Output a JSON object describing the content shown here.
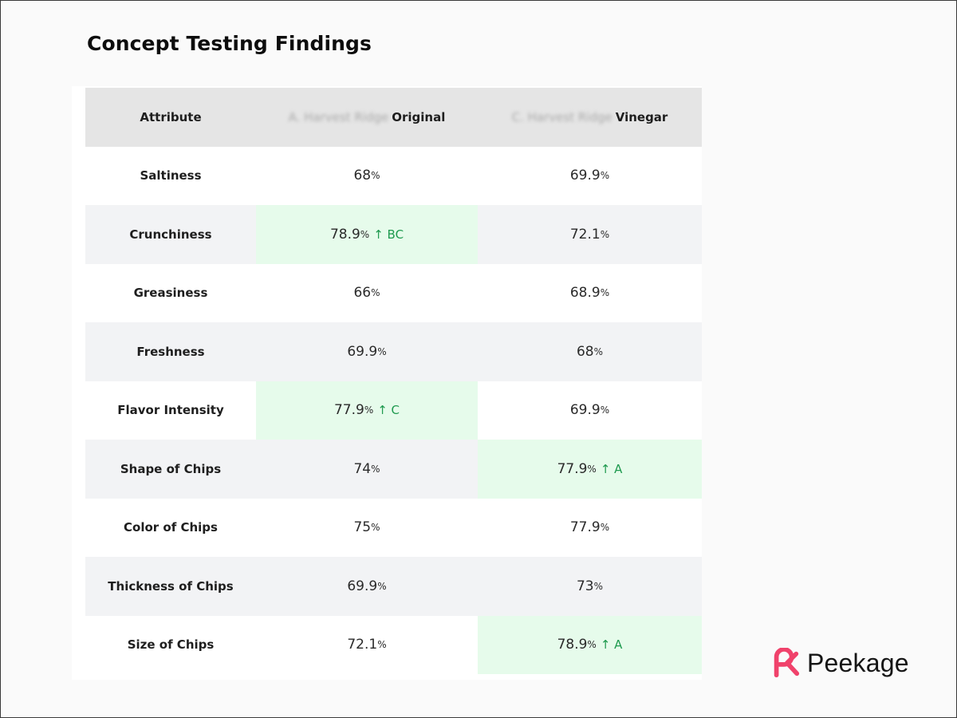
{
  "title": "Concept Testing Findings",
  "table": {
    "header": {
      "attribute": "Attribute",
      "col_a_blurred": "A. Harvest Ridge",
      "col_a_visible": "Original",
      "col_c_blurred": "C. Harvest Ridge",
      "col_c_visible": "Vinegar"
    },
    "rows": [
      {
        "attribute": "Saltiness",
        "a": {
          "value": "68",
          "unit": "%",
          "sig": ""
        },
        "c": {
          "value": "69.9",
          "unit": "%",
          "sig": ""
        }
      },
      {
        "attribute": "Crunchiness",
        "a": {
          "value": "78.9",
          "unit": "%",
          "sig": "↑ BC"
        },
        "c": {
          "value": "72.1",
          "unit": "%",
          "sig": ""
        }
      },
      {
        "attribute": "Greasiness",
        "a": {
          "value": "66",
          "unit": "%",
          "sig": ""
        },
        "c": {
          "value": "68.9",
          "unit": "%",
          "sig": ""
        }
      },
      {
        "attribute": "Freshness",
        "a": {
          "value": "69.9",
          "unit": "%",
          "sig": ""
        },
        "c": {
          "value": "68",
          "unit": "%",
          "sig": ""
        }
      },
      {
        "attribute": "Flavor Intensity",
        "a": {
          "value": "77.9",
          "unit": "%",
          "sig": "↑ C"
        },
        "c": {
          "value": "69.9",
          "unit": "%",
          "sig": ""
        }
      },
      {
        "attribute": "Shape of Chips",
        "a": {
          "value": "74",
          "unit": "%",
          "sig": ""
        },
        "c": {
          "value": "77.9",
          "unit": "%",
          "sig": "↑ A"
        }
      },
      {
        "attribute": "Color of Chips",
        "a": {
          "value": "75",
          "unit": "%",
          "sig": ""
        },
        "c": {
          "value": "77.9",
          "unit": "%",
          "sig": ""
        }
      },
      {
        "attribute": "Thickness of Chips",
        "a": {
          "value": "69.9",
          "unit": "%",
          "sig": ""
        },
        "c": {
          "value": "73",
          "unit": "%",
          "sig": ""
        }
      },
      {
        "attribute": "Size of Chips",
        "a": {
          "value": "72.1",
          "unit": "%",
          "sig": ""
        },
        "c": {
          "value": "78.9",
          "unit": "%",
          "sig": "↑ A"
        }
      }
    ]
  },
  "logo": {
    "text": "Peekage",
    "icon": "peekage-logo-icon",
    "brand_color": "#f0426b"
  },
  "colors": {
    "header_bg": "#e5e5e5",
    "alt_row_bg": "#f2f3f5",
    "significant_bg": "#e6fbeb",
    "significant_text": "#1f9a4f"
  }
}
